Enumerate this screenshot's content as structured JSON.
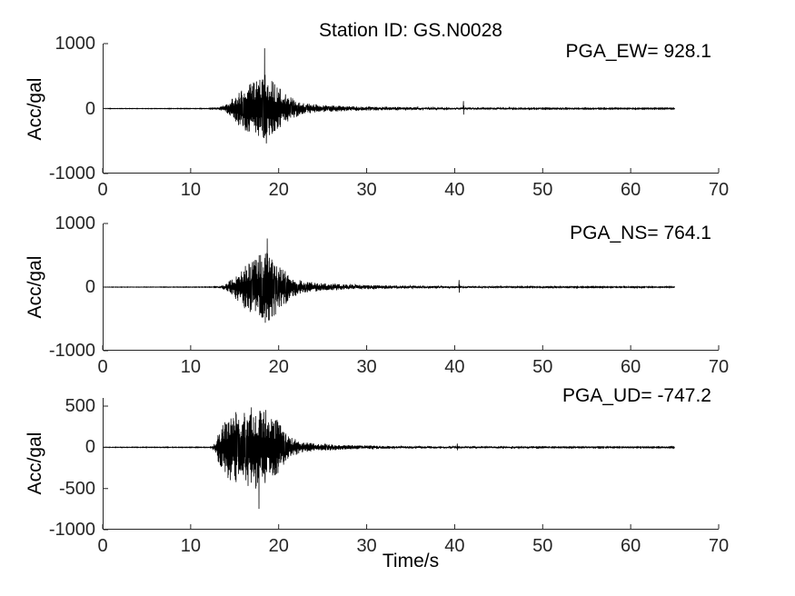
{
  "figure": {
    "title": "Station ID: GS.N0028",
    "xlabel": "Time/s",
    "background": "#ffffff",
    "axis_color": "#262626",
    "trace_color": "#000000",
    "text_color": "#000000"
  },
  "chart_data": [
    {
      "type": "line",
      "name": "EW",
      "annotation": "PGA_EW= 928.1",
      "pga": 928.1,
      "pga_time": 18.4,
      "ylabel": "Acc/gal",
      "xlim": [
        0,
        70
      ],
      "ylim": [
        -1000,
        1000
      ],
      "xticks": [
        0,
        10,
        20,
        30,
        40,
        50,
        60,
        70
      ],
      "yticks": [
        -1000,
        0,
        1000
      ],
      "duration": 65,
      "sample_rate": 50,
      "seed": 3,
      "envelope": [
        [
          0,
          3
        ],
        [
          12,
          4
        ],
        [
          13,
          12
        ],
        [
          14,
          60
        ],
        [
          15,
          200
        ],
        [
          16,
          340
        ],
        [
          17,
          400
        ],
        [
          18,
          480
        ],
        [
          18.4,
          600
        ],
        [
          19,
          460
        ],
        [
          20,
          330
        ],
        [
          21,
          210
        ],
        [
          22,
          130
        ],
        [
          23,
          85
        ],
        [
          25,
          55
        ],
        [
          28,
          38
        ],
        [
          32,
          28
        ],
        [
          36,
          20
        ],
        [
          40,
          16
        ],
        [
          44,
          14
        ],
        [
          48,
          12
        ],
        [
          54,
          10
        ],
        [
          60,
          8
        ],
        [
          65,
          7
        ]
      ],
      "aftershock": {
        "time": 41.0,
        "amp": 115
      }
    },
    {
      "type": "line",
      "name": "NS",
      "annotation": "PGA_NS= 764.1",
      "pga": 764.1,
      "pga_time": 18.7,
      "ylabel": "Acc/gal",
      "xlim": [
        0,
        70
      ],
      "ylim": [
        -1000,
        1000
      ],
      "xticks": [
        0,
        10,
        20,
        30,
        40,
        50,
        60,
        70
      ],
      "yticks": [
        -1000,
        0,
        1000
      ],
      "duration": 65,
      "sample_rate": 50,
      "seed": 11,
      "envelope": [
        [
          0,
          3
        ],
        [
          12.5,
          4
        ],
        [
          13.3,
          12
        ],
        [
          14,
          50
        ],
        [
          15,
          170
        ],
        [
          16,
          320
        ],
        [
          17,
          430
        ],
        [
          18,
          530
        ],
        [
          18.7,
          660
        ],
        [
          19.2,
          520
        ],
        [
          20,
          360
        ],
        [
          21,
          230
        ],
        [
          22,
          140
        ],
        [
          23,
          90
        ],
        [
          25,
          60
        ],
        [
          28,
          40
        ],
        [
          32,
          28
        ],
        [
          36,
          20
        ],
        [
          40,
          16
        ],
        [
          44,
          13
        ],
        [
          50,
          11
        ],
        [
          56,
          9
        ],
        [
          65,
          7
        ]
      ],
      "aftershock": {
        "time": 40.5,
        "amp": 110
      }
    },
    {
      "type": "line",
      "name": "UD",
      "annotation": "PGA_UD= -747.2",
      "pga": -747.2,
      "pga_time": 17.75,
      "ylabel": "Acc/gal",
      "xlim": [
        0,
        70
      ],
      "ylim": [
        -1000,
        600
      ],
      "xticks": [
        0,
        10,
        20,
        30,
        40,
        50,
        60,
        70
      ],
      "yticks": [
        -1000,
        -500,
        0,
        500
      ],
      "duration": 65,
      "sample_rate": 50,
      "seed": 5,
      "envelope": [
        [
          0,
          3
        ],
        [
          12.3,
          4
        ],
        [
          12.8,
          60
        ],
        [
          13.2,
          200
        ],
        [
          13.8,
          330
        ],
        [
          14.5,
          430
        ],
        [
          15.5,
          460
        ],
        [
          16.5,
          480
        ],
        [
          17.5,
          530
        ],
        [
          18,
          480
        ],
        [
          18.8,
          470
        ],
        [
          19.5,
          380
        ],
        [
          20.5,
          230
        ],
        [
          21.5,
          120
        ],
        [
          22.5,
          70
        ],
        [
          24,
          48
        ],
        [
          26,
          36
        ],
        [
          28,
          28
        ],
        [
          31,
          20
        ],
        [
          35,
          15
        ],
        [
          40,
          12
        ],
        [
          45,
          10
        ],
        [
          50,
          9
        ],
        [
          60,
          7
        ],
        [
          65,
          6
        ]
      ],
      "aftershock": {
        "time": 40.3,
        "amp": 45
      }
    }
  ]
}
